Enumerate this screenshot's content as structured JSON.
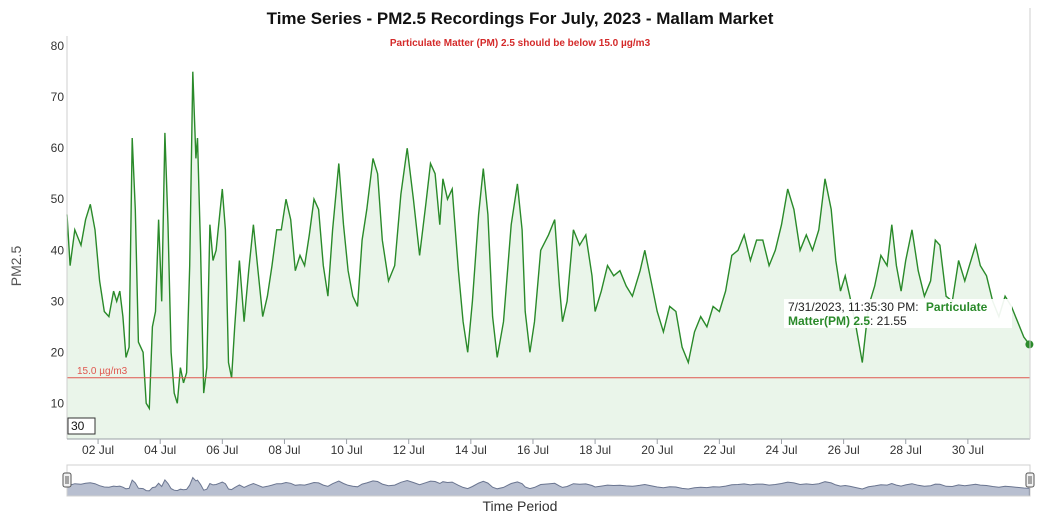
{
  "chart_data": {
    "type": "area",
    "title": "Time Series - PM2.5 Recordings For July, 2023 - Mallam Market",
    "subtitle": "Particulate Matter (PM) 2.5 should be below 15.0 µg/m3",
    "xlabel": "Time Period",
    "ylabel": "PM2.5",
    "ylim": [
      3,
      82
    ],
    "yticks": [
      10,
      20,
      30,
      40,
      50,
      60,
      70,
      80
    ],
    "xlim_day": [
      1.0,
      32.0
    ],
    "xticks": [
      {
        "day": 2,
        "label": "02 Jul"
      },
      {
        "day": 4,
        "label": "04 Jul"
      },
      {
        "day": 6,
        "label": "06 Jul"
      },
      {
        "day": 8,
        "label": "08 Jul"
      },
      {
        "day": 10,
        "label": "10 Jul"
      },
      {
        "day": 12,
        "label": "12 Jul"
      },
      {
        "day": 14,
        "label": "14 Jul"
      },
      {
        "day": 16,
        "label": "16 Jul"
      },
      {
        "day": 18,
        "label": "18 Jul"
      },
      {
        "day": 20,
        "label": "20 Jul"
      },
      {
        "day": 22,
        "label": "22 Jul"
      },
      {
        "day": 24,
        "label": "24 Jul"
      },
      {
        "day": 26,
        "label": "26 Jul"
      },
      {
        "day": 28,
        "label": "28 Jul"
      },
      {
        "day": 30,
        "label": "30 Jul"
      }
    ],
    "grid": false,
    "threshold": {
      "value": 15.0,
      "label": "15.0 µg/m3",
      "color": "#e0574f"
    },
    "series": [
      {
        "name": "Particulate Matter(PM) 2.5",
        "color": "#2a8a2a",
        "fill": "#eaf5ea",
        "points": [
          [
            1.0,
            47
          ],
          [
            1.1,
            37
          ],
          [
            1.25,
            44
          ],
          [
            1.45,
            41
          ],
          [
            1.6,
            46
          ],
          [
            1.75,
            49
          ],
          [
            1.9,
            44
          ],
          [
            2.05,
            34
          ],
          [
            2.2,
            28
          ],
          [
            2.35,
            27
          ],
          [
            2.5,
            32
          ],
          [
            2.6,
            30
          ],
          [
            2.7,
            32
          ],
          [
            2.8,
            27
          ],
          [
            2.9,
            19
          ],
          [
            3.0,
            21
          ],
          [
            3.1,
            62
          ],
          [
            3.2,
            48
          ],
          [
            3.3,
            22
          ],
          [
            3.45,
            20
          ],
          [
            3.55,
            10
          ],
          [
            3.65,
            9
          ],
          [
            3.75,
            25
          ],
          [
            3.85,
            28
          ],
          [
            3.95,
            46
          ],
          [
            4.05,
            30
          ],
          [
            4.15,
            63
          ],
          [
            4.25,
            45
          ],
          [
            4.35,
            20
          ],
          [
            4.45,
            12
          ],
          [
            4.55,
            10
          ],
          [
            4.65,
            17
          ],
          [
            4.75,
            14
          ],
          [
            4.85,
            16
          ],
          [
            4.95,
            37
          ],
          [
            5.05,
            75
          ],
          [
            5.15,
            58
          ],
          [
            5.2,
            62
          ],
          [
            5.3,
            40
          ],
          [
            5.4,
            12
          ],
          [
            5.5,
            17
          ],
          [
            5.6,
            45
          ],
          [
            5.7,
            38
          ],
          [
            5.8,
            40
          ],
          [
            5.9,
            46
          ],
          [
            6.0,
            52
          ],
          [
            6.1,
            44
          ],
          [
            6.2,
            18
          ],
          [
            6.3,
            15
          ],
          [
            6.4,
            25
          ],
          [
            6.55,
            38
          ],
          [
            6.7,
            26
          ],
          [
            6.85,
            36
          ],
          [
            7.0,
            45
          ],
          [
            7.15,
            36
          ],
          [
            7.3,
            27
          ],
          [
            7.45,
            31
          ],
          [
            7.6,
            37
          ],
          [
            7.75,
            44
          ],
          [
            7.9,
            44
          ],
          [
            8.05,
            50
          ],
          [
            8.2,
            46
          ],
          [
            8.35,
            36
          ],
          [
            8.5,
            39
          ],
          [
            8.65,
            37
          ],
          [
            8.8,
            43
          ],
          [
            8.95,
            50
          ],
          [
            9.1,
            48
          ],
          [
            9.25,
            37
          ],
          [
            9.4,
            31
          ],
          [
            9.55,
            44
          ],
          [
            9.75,
            57
          ],
          [
            9.9,
            45
          ],
          [
            10.05,
            36
          ],
          [
            10.2,
            31
          ],
          [
            10.35,
            29
          ],
          [
            10.5,
            42
          ],
          [
            10.65,
            48
          ],
          [
            10.85,
            58
          ],
          [
            11.0,
            55
          ],
          [
            11.15,
            42
          ],
          [
            11.35,
            34
          ],
          [
            11.55,
            37
          ],
          [
            11.75,
            51
          ],
          [
            11.95,
            60
          ],
          [
            12.15,
            50
          ],
          [
            12.35,
            39
          ],
          [
            12.55,
            49
          ],
          [
            12.7,
            57
          ],
          [
            12.85,
            55
          ],
          [
            13.0,
            45
          ],
          [
            13.1,
            54
          ],
          [
            13.25,
            50
          ],
          [
            13.4,
            52
          ],
          [
            13.6,
            36
          ],
          [
            13.75,
            26
          ],
          [
            13.9,
            20
          ],
          [
            14.05,
            30
          ],
          [
            14.25,
            47
          ],
          [
            14.4,
            56
          ],
          [
            14.55,
            47
          ],
          [
            14.7,
            27
          ],
          [
            14.85,
            19
          ],
          [
            15.05,
            26
          ],
          [
            15.3,
            45
          ],
          [
            15.5,
            53
          ],
          [
            15.65,
            44
          ],
          [
            15.75,
            28
          ],
          [
            15.9,
            20
          ],
          [
            16.05,
            26
          ],
          [
            16.25,
            40
          ],
          [
            16.5,
            43
          ],
          [
            16.7,
            46
          ],
          [
            16.85,
            33
          ],
          [
            16.95,
            26
          ],
          [
            17.1,
            30
          ],
          [
            17.3,
            44
          ],
          [
            17.5,
            41
          ],
          [
            17.7,
            43
          ],
          [
            17.9,
            35
          ],
          [
            18.0,
            28
          ],
          [
            18.2,
            32
          ],
          [
            18.4,
            37
          ],
          [
            18.6,
            35
          ],
          [
            18.8,
            36
          ],
          [
            19.0,
            33
          ],
          [
            19.2,
            31
          ],
          [
            19.45,
            36
          ],
          [
            19.6,
            40
          ],
          [
            19.8,
            34
          ],
          [
            20.0,
            28
          ],
          [
            20.2,
            24
          ],
          [
            20.4,
            29
          ],
          [
            20.6,
            28
          ],
          [
            20.8,
            21
          ],
          [
            21.0,
            18
          ],
          [
            21.2,
            24
          ],
          [
            21.4,
            27
          ],
          [
            21.6,
            25
          ],
          [
            21.8,
            29
          ],
          [
            22.0,
            28
          ],
          [
            22.2,
            32
          ],
          [
            22.4,
            39
          ],
          [
            22.6,
            40
          ],
          [
            22.8,
            43
          ],
          [
            23.0,
            38
          ],
          [
            23.2,
            42
          ],
          [
            23.4,
            42
          ],
          [
            23.6,
            37
          ],
          [
            23.8,
            40
          ],
          [
            24.0,
            45
          ],
          [
            24.2,
            52
          ],
          [
            24.4,
            48
          ],
          [
            24.6,
            40
          ],
          [
            24.8,
            43
          ],
          [
            25.0,
            40
          ],
          [
            25.2,
            44
          ],
          [
            25.4,
            54
          ],
          [
            25.6,
            48
          ],
          [
            25.75,
            38
          ],
          [
            25.9,
            32
          ],
          [
            26.05,
            35
          ],
          [
            26.2,
            31
          ],
          [
            26.4,
            25
          ],
          [
            26.6,
            18
          ],
          [
            26.8,
            29
          ],
          [
            27.0,
            33
          ],
          [
            27.2,
            39
          ],
          [
            27.4,
            37
          ],
          [
            27.55,
            45
          ],
          [
            27.7,
            37
          ],
          [
            27.85,
            32
          ],
          [
            28.0,
            38
          ],
          [
            28.2,
            44
          ],
          [
            28.4,
            36
          ],
          [
            28.6,
            31
          ],
          [
            28.8,
            34
          ],
          [
            28.95,
            42
          ],
          [
            29.1,
            41
          ],
          [
            29.3,
            31
          ],
          [
            29.5,
            30
          ],
          [
            29.7,
            38
          ],
          [
            29.9,
            34
          ],
          [
            30.05,
            37
          ],
          [
            30.25,
            41
          ],
          [
            30.4,
            37
          ],
          [
            30.6,
            35
          ],
          [
            30.8,
            30
          ],
          [
            31.0,
            27
          ],
          [
            31.2,
            31
          ],
          [
            31.4,
            29
          ],
          [
            31.6,
            26
          ],
          [
            31.8,
            23
          ],
          [
            31.98,
            21.55
          ]
        ]
      }
    ],
    "tooltip": {
      "time": "7/31/2023, 11:35:30 PM:",
      "series": "Particulate Matter(PM) 2.5",
      "value": ": 21.55"
    },
    "range_selector_label": "30",
    "navigator": {
      "fill": "#b8bfd0",
      "line": "#6a7590"
    }
  }
}
